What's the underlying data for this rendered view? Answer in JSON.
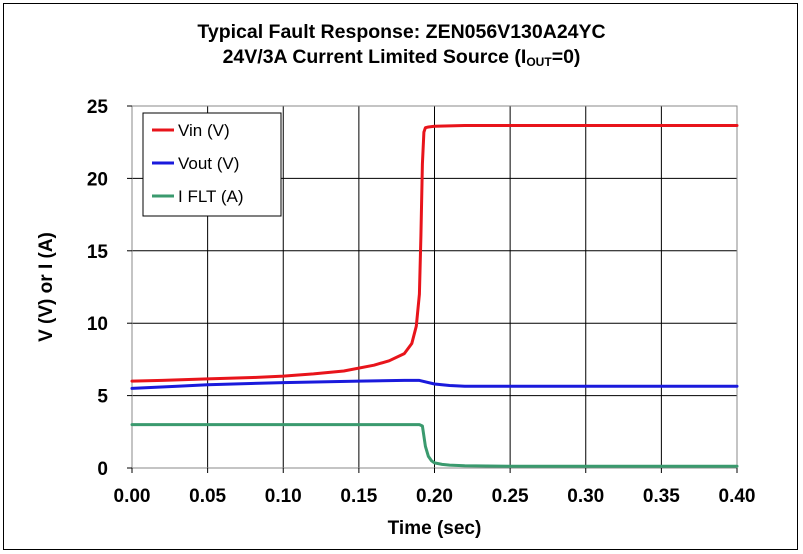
{
  "chart_data": {
    "type": "line",
    "title": "Typical Fault Response: ZEN056V130A24YC",
    "subtitle": {
      "prefix": "24V/3A  Current Limited Source (I",
      "sub": "OUT",
      "suffix": "=0)"
    },
    "xlabel": "Time (sec)",
    "ylabel": "V (V) or I (A)",
    "xlim": [
      0,
      0.4
    ],
    "ylim": [
      0,
      25
    ],
    "xticks": [
      "0.00",
      "0.05",
      "0.10",
      "0.15",
      "0.20",
      "0.25",
      "0.30",
      "0.35",
      "0.40"
    ],
    "yticks": [
      "0",
      "5",
      "10",
      "15",
      "20",
      "25"
    ],
    "grid": true,
    "legend_position": "top-left",
    "series": [
      {
        "name": "Vin (V)",
        "color": "#e8141b",
        "x": [
          0,
          0.02,
          0.05,
          0.08,
          0.1,
          0.12,
          0.14,
          0.16,
          0.17,
          0.18,
          0.185,
          0.188,
          0.19,
          0.191,
          0.192,
          0.193,
          0.194,
          0.196,
          0.2,
          0.22,
          0.25,
          0.3,
          0.35,
          0.4
        ],
        "y": [
          6.0,
          6.05,
          6.15,
          6.25,
          6.35,
          6.5,
          6.7,
          7.1,
          7.4,
          7.9,
          8.6,
          9.8,
          12,
          16,
          21,
          23.2,
          23.5,
          23.55,
          23.6,
          23.65,
          23.65,
          23.65,
          23.65,
          23.65
        ]
      },
      {
        "name": "Vout (V)",
        "color": "#1a1adc",
        "x": [
          0,
          0.03,
          0.05,
          0.1,
          0.15,
          0.18,
          0.19,
          0.2,
          0.21,
          0.22,
          0.25,
          0.3,
          0.35,
          0.4
        ],
        "y": [
          5.5,
          5.65,
          5.75,
          5.9,
          6.0,
          6.05,
          6.05,
          5.8,
          5.7,
          5.65,
          5.65,
          5.65,
          5.65,
          5.65
        ]
      },
      {
        "name": "I FLT (A)",
        "color": "#3a9a6e",
        "x": [
          0,
          0.1,
          0.19,
          0.192,
          0.194,
          0.196,
          0.198,
          0.2,
          0.205,
          0.21,
          0.22,
          0.25,
          0.3,
          0.35,
          0.4
        ],
        "y": [
          3.0,
          3.0,
          3.0,
          2.9,
          1.5,
          0.8,
          0.5,
          0.35,
          0.25,
          0.2,
          0.15,
          0.12,
          0.12,
          0.12,
          0.12
        ]
      }
    ]
  }
}
